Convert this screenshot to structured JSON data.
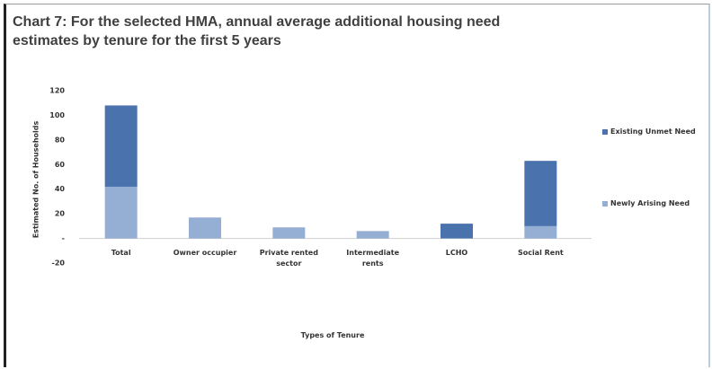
{
  "chart_data": {
    "type": "stacked_bar",
    "title": "Chart 7: For the selected HMA, annual average additional housing need estimates by tenure for the first 5 years",
    "y_label": "Estimated No. of Households",
    "x_label": "Types of Tenure",
    "categories": [
      "Total",
      "Owner occupier",
      "Private rented sector",
      "Intermediate rents",
      "LCHO",
      "Social Rent"
    ],
    "series": [
      {
        "name": "Newly Arising Need",
        "color": "#94aed4",
        "values": [
          42,
          17,
          9,
          6,
          0,
          10
        ]
      },
      {
        "name": "Existing Unmet Need",
        "color": "#4a72ac",
        "values": [
          66,
          0,
          0,
          0,
          12,
          53
        ]
      }
    ],
    "ylim": [
      -20,
      120
    ],
    "yticks": [
      -20,
      {
        "value": 0,
        "label": "-"
      },
      20,
      40,
      60,
      80,
      100,
      120
    ],
    "legend": "right"
  }
}
